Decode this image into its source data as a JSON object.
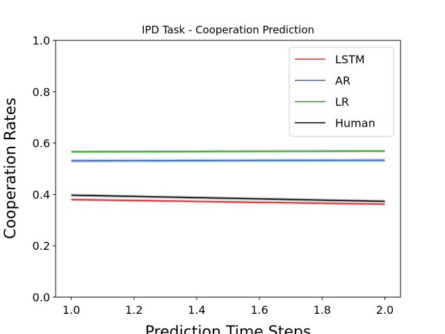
{
  "chart_data": {
    "type": "line",
    "title": "IPD Task - Cooperation Prediction",
    "xlabel": "Prediction Time Steps",
    "ylabel": "Cooperation Rates",
    "xlim": [
      0.95,
      2.05
    ],
    "ylim": [
      0.0,
      1.0
    ],
    "x_ticks": [
      "1.0",
      "1.2",
      "1.4",
      "1.6",
      "1.8",
      "2.0"
    ],
    "y_ticks": [
      "0.0",
      "0.2",
      "0.4",
      "0.6",
      "0.8",
      "1.0"
    ],
    "grid": false,
    "legend_position": "upper right",
    "series": [
      {
        "name": "LSTM",
        "color": "#d62728",
        "band_color": "#e88a8b",
        "x": [
          1.0,
          2.0
        ],
        "y": [
          0.38,
          0.362
        ],
        "band": 0.005
      },
      {
        "name": "AR",
        "color": "#2f5fb3",
        "band_color": "#9db5df",
        "x": [
          1.0,
          2.0
        ],
        "y": [
          0.531,
          0.533
        ],
        "band": 0.007
      },
      {
        "name": "LR",
        "color": "#2ca02c",
        "band_color": "#9bd09b",
        "x": [
          1.0,
          2.0
        ],
        "y": [
          0.566,
          0.569
        ],
        "band": 0.006
      },
      {
        "name": "Human",
        "color": "#000000",
        "band_color": "#9a9a9a",
        "x": [
          1.0,
          2.0
        ],
        "y": [
          0.397,
          0.373
        ],
        "band": 0.006
      }
    ]
  }
}
